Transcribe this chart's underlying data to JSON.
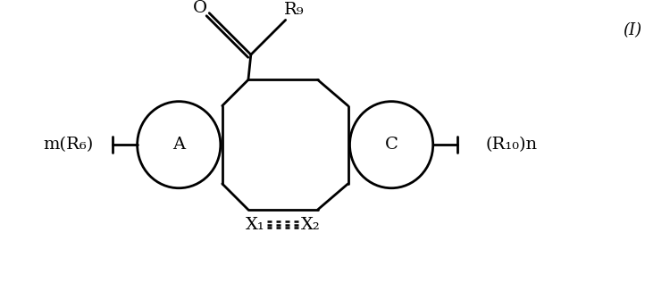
{
  "bg_color": "#ffffff",
  "line_color": "#000000",
  "label_I": "(I)",
  "label_A": "A",
  "label_C": "C",
  "label_O": "O",
  "label_R9": "R₉",
  "label_mR6": "m(R₆)",
  "label_R10n": "(R₁₀)n",
  "label_X1": "X₁",
  "label_X2": "X₂",
  "figsize": [
    7.5,
    3.35
  ],
  "dpi": 100
}
